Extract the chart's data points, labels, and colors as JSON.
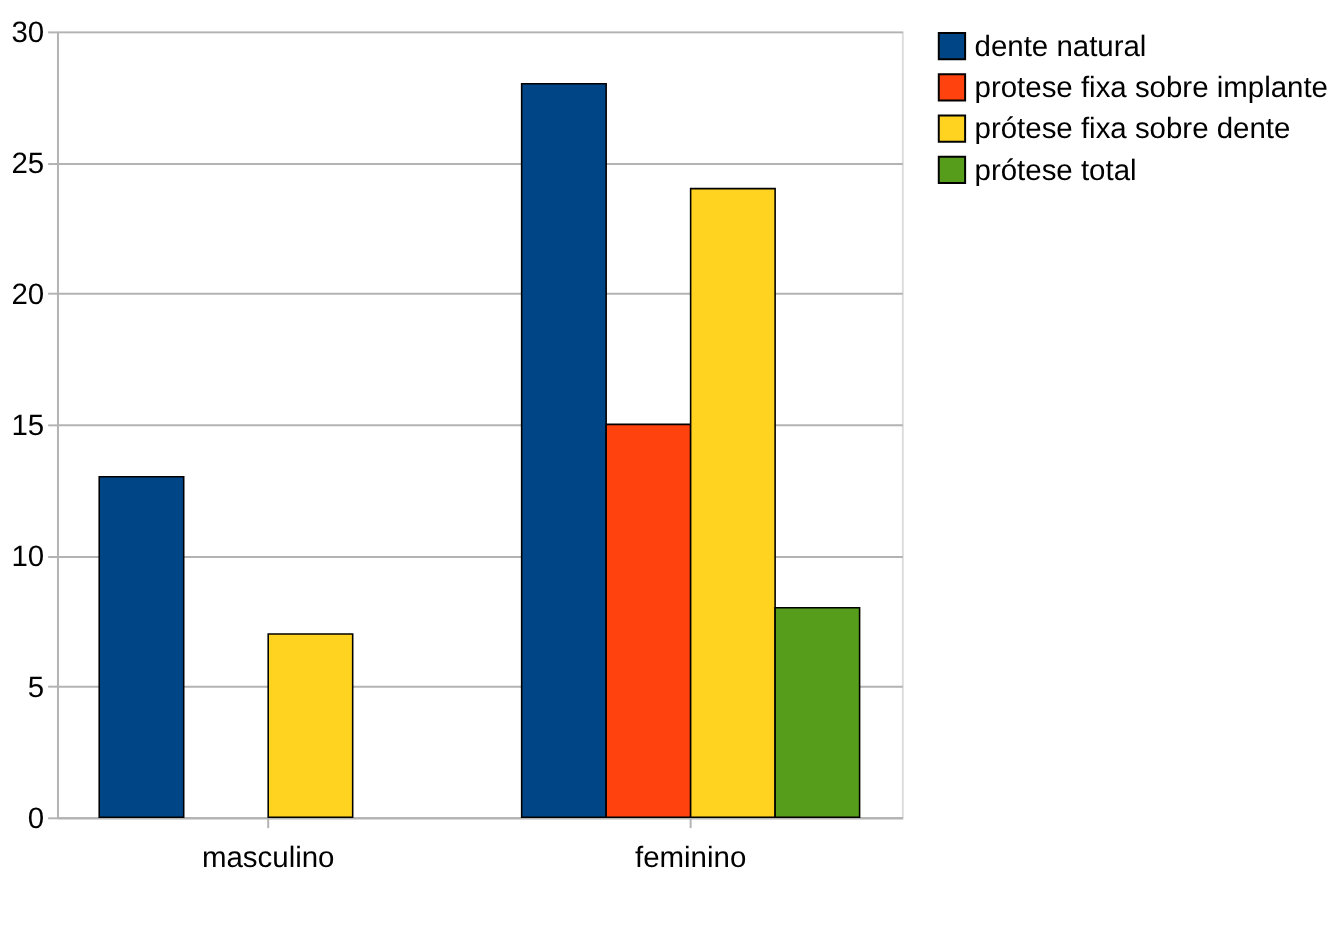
{
  "chart_data": {
    "type": "bar",
    "categories": [
      "masculino",
      "feminino"
    ],
    "series": [
      {
        "name": "dente natural",
        "color": "#004586",
        "values": [
          13,
          28
        ]
      },
      {
        "name": "protese fixa sobre implante",
        "color": "#ff420e",
        "values": [
          null,
          15
        ]
      },
      {
        "name": "prótese fixa sobre dente",
        "color": "#ffd320",
        "values": [
          7,
          24
        ]
      },
      {
        "name": "prótese total",
        "color": "#579d1c",
        "values": [
          null,
          8
        ]
      }
    ],
    "ylim": [
      0,
      30
    ],
    "yticks": [
      0,
      5,
      10,
      15,
      20,
      25,
      30
    ],
    "grid": "y",
    "legend": "right"
  }
}
